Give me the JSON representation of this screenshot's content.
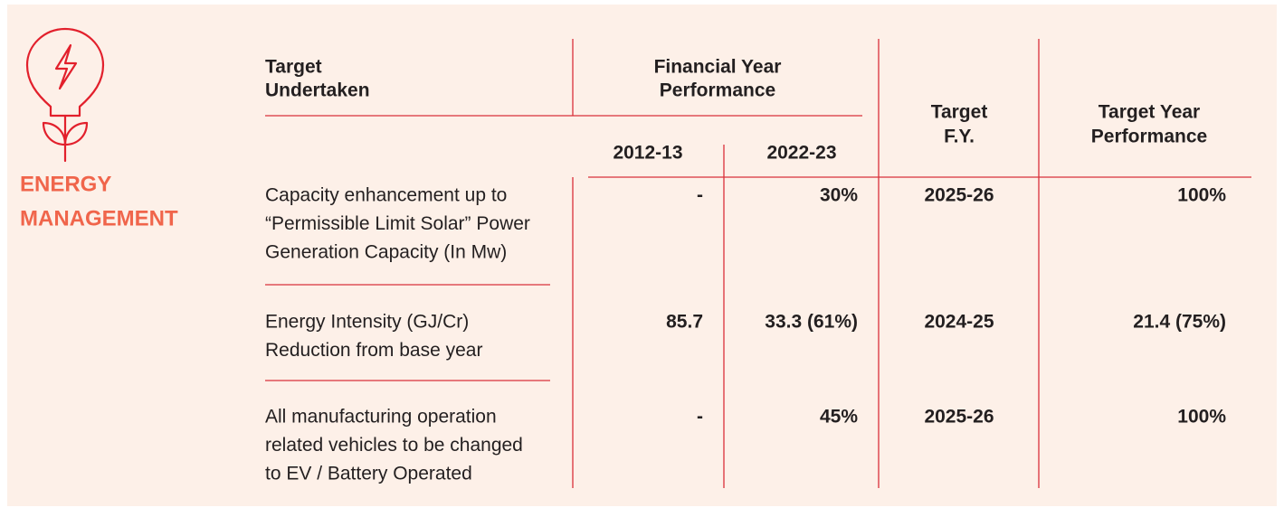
{
  "header": {
    "title_lines": [
      "ENERGY",
      "MANAGEMENT"
    ]
  },
  "table": {
    "columns": {
      "target": [
        "Target",
        "Undertaken"
      ],
      "performance": [
        "Financial Year",
        "Performance"
      ],
      "years": [
        "2012-13",
        "2022-23"
      ],
      "target_fy": [
        "Target",
        "F.Y."
      ],
      "target_perf": [
        "Target Year",
        "Performance"
      ]
    },
    "rows": [
      {
        "target": [
          "Capacity enhancement up to",
          "“Permissible Limit Solar” Power",
          "Generation Capacity (In Mw)"
        ],
        "y2012": "-",
        "y2022": "30%",
        "fy": "2025-26",
        "perf": "100%"
      },
      {
        "target": [
          "Energy Intensity (GJ/Cr)",
          "Reduction from base year"
        ],
        "y2012": "85.7",
        "y2022": "33.3 (61%)",
        "fy": "2024-25",
        "perf": "21.4 (75%)"
      },
      {
        "target": [
          "All manufacturing operation",
          "related vehicles to be changed",
          "to EV / Battery Operated"
        ],
        "y2012": "-",
        "y2022": "45%",
        "fy": "2025-26",
        "perf": "100%"
      }
    ]
  }
}
